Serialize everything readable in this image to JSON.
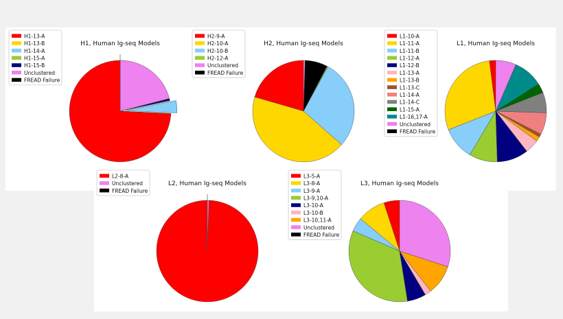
{
  "chart_data": [
    {
      "type": "pie",
      "title": "H1, Human Ig-seq Models",
      "legend_position": "top-left",
      "labels": [
        "H1-13-A",
        "H1-13-B",
        "H1-14-A",
        "H1-15-A",
        "H1-15-B",
        "Unclustered",
        "FREAD Failure"
      ],
      "values": [
        74.2,
        0.1,
        3.9,
        0.2,
        0.6,
        21.0,
        0.0
      ],
      "colors": [
        "#ff0000",
        "#ffd700",
        "#87cefa",
        "#9acd32",
        "#000080",
        "#ee82ee",
        "#000000"
      ],
      "start_angle": 90,
      "direction": "counterclockwise",
      "explode": [
        0,
        0,
        0.12,
        0,
        0,
        0,
        0.12
      ]
    },
    {
      "type": "pie",
      "title": "H2, Human Ig-seq Models",
      "legend_position": "top-left",
      "labels": [
        "H2-9-A",
        "H2-10-A",
        "H2-10-B",
        "H2-12-A",
        "Unclustered",
        "FREAD Failure"
      ],
      "values": [
        20.5,
        43.0,
        28.5,
        0.3,
        0.5,
        7.2
      ],
      "colors": [
        "#ff0000",
        "#ffd700",
        "#87cefa",
        "#9acd32",
        "#ee82ee",
        "#000000"
      ],
      "slice_order": [
        0,
        1,
        2,
        3,
        5,
        4
      ],
      "start_angle": 90,
      "direction": "counterclockwise"
    },
    {
      "type": "pie",
      "title": "L1, Human Ig-seq Models",
      "legend_position": "top-left",
      "labels": [
        "L1-10-A",
        "L1-11-A",
        "L1-11-B",
        "L1-12-A",
        "L1-12-B",
        "L1-13-A",
        "L1-13-B",
        "L1-13-C",
        "L1-14-A",
        "L1-14-C",
        "L1-15-A",
        "L1-16,17-A",
        "Unclustered",
        "FREAD Failure"
      ],
      "values": [
        2.0,
        29.0,
        10.5,
        9.0,
        10.0,
        4.5,
        1.5,
        1.0,
        7.0,
        6.5,
        3.0,
        9.5,
        6.5,
        0.0
      ],
      "colors": [
        "#ff0000",
        "#ffd700",
        "#87cefa",
        "#9acd32",
        "#000080",
        "#ffb6c1",
        "#ffa500",
        "#a0522d",
        "#f08080",
        "#808080",
        "#006400",
        "#008b8b",
        "#ee82ee",
        "#000000"
      ],
      "start_angle": 90,
      "direction": "counterclockwise"
    },
    {
      "type": "pie",
      "title": "L2, Human Ig-seq Models",
      "legend_position": "top-left",
      "labels": [
        "L2-8-A",
        "Unclustered",
        "FREAD Failure"
      ],
      "values": [
        99.5,
        0.5,
        0.0
      ],
      "colors": [
        "#ff0000",
        "#ee82ee",
        "#000000"
      ],
      "start_angle": 90,
      "direction": "counterclockwise",
      "explode": [
        0,
        0,
        0.12
      ]
    },
    {
      "type": "pie",
      "title": "L3, Human Ig-seq Models",
      "legend_position": "top-left",
      "labels": [
        "L3-5-A",
        "L3-8-A",
        "L3-9-A",
        "L3-9,10-A",
        "L3-10-A",
        "L3-10-B",
        "L3-10,11-A",
        "Unclustered",
        "FREAD Failure"
      ],
      "values": [
        5.0,
        9.0,
        4.5,
        34.0,
        6.0,
        2.0,
        9.5,
        30.0,
        0.0
      ],
      "colors": [
        "#ff0000",
        "#ffd700",
        "#87cefa",
        "#9acd32",
        "#000080",
        "#ffb6c1",
        "#ffa500",
        "#ee82ee",
        "#000000"
      ],
      "start_angle": 90,
      "direction": "counterclockwise"
    }
  ]
}
